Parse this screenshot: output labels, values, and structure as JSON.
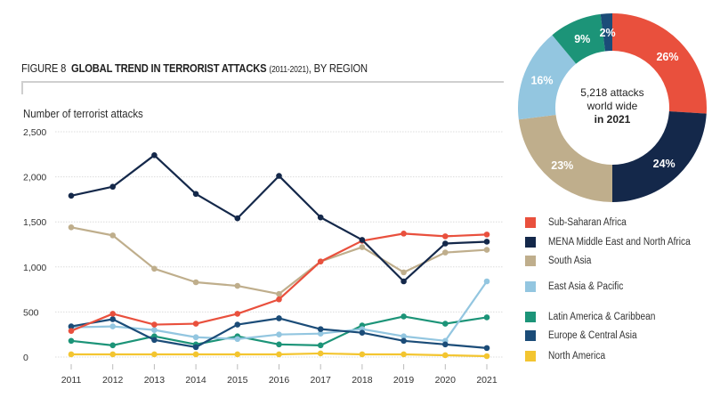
{
  "figure": {
    "prefix": "FIGURE 8",
    "title_bold": "GLOBAL TREND IN TERRORIST ATTACKS",
    "title_range": "(2011-2021)",
    "title_suffix": ", BY REGION"
  },
  "chart_data": [
    {
      "type": "line",
      "title": "GLOBAL TREND IN TERRORIST ATTACKS (2011-2021), BY REGION",
      "xlabel": "",
      "ylabel": "Number of terrorist attacks",
      "x": [
        "2011",
        "2012",
        "2013",
        "2014",
        "2015",
        "2016",
        "2017",
        "2018",
        "2019",
        "2020",
        "2021"
      ],
      "ylim": [
        0,
        2500
      ],
      "yticks": [
        0,
        500,
        1000,
        1500,
        2000,
        2500
      ],
      "ytick_labels": [
        "0",
        "500",
        "1,000",
        "1,500",
        "2,000",
        "2,500"
      ],
      "grid": true,
      "legend_position": "right",
      "series": [
        {
          "name": "Sub-Saharan Africa",
          "color": "#E9503D",
          "values": [
            290,
            480,
            360,
            370,
            480,
            640,
            1060,
            1290,
            1370,
            1340,
            1360
          ]
        },
        {
          "name": "MENA Middle East and North Africa",
          "color": "#14284A",
          "values": [
            1790,
            1890,
            2240,
            1810,
            1540,
            2010,
            1550,
            1300,
            840,
            1260,
            1280
          ]
        },
        {
          "name": "South Asia",
          "color": "#BFAE8C",
          "values": [
            1440,
            1350,
            980,
            830,
            790,
            700,
            1060,
            1220,
            940,
            1160,
            1190
          ]
        },
        {
          "name": "East Asia & Pacific",
          "color": "#93C6E0",
          "values": [
            330,
            340,
            300,
            220,
            200,
            250,
            260,
            310,
            230,
            180,
            840
          ]
        },
        {
          "name": "Latin America & Caribbean",
          "color": "#1C9478",
          "values": [
            180,
            130,
            230,
            140,
            230,
            140,
            130,
            350,
            450,
            370,
            440
          ]
        },
        {
          "name": "Europe & Central Asia",
          "color": "#1B4C78",
          "values": [
            340,
            420,
            190,
            110,
            360,
            430,
            310,
            270,
            180,
            140,
            100
          ]
        },
        {
          "name": "North America",
          "color": "#F3C530",
          "values": [
            30,
            30,
            30,
            30,
            30,
            30,
            40,
            30,
            30,
            20,
            10
          ]
        }
      ]
    },
    {
      "type": "pie",
      "title": "5,218 attacks world wide in 2021",
      "center_text": [
        "5,218 attacks",
        "world wide",
        "in 2021"
      ],
      "slices": [
        {
          "name": "Sub-Saharan Africa",
          "value": 26,
          "label": "26%",
          "color": "#E9503D"
        },
        {
          "name": "MENA Middle East and North Africa",
          "value": 24,
          "label": "24%",
          "color": "#14284A"
        },
        {
          "name": "South Asia",
          "value": 23,
          "label": "23%",
          "color": "#BFAE8C"
        },
        {
          "name": "East Asia & Pacific",
          "value": 16,
          "label": "16%",
          "color": "#93C6E0"
        },
        {
          "name": "Latin America & Caribbean",
          "value": 9,
          "label": "9%",
          "color": "#1C9478"
        },
        {
          "name": "Europe & Central Asia",
          "value": 2,
          "label": "2%",
          "color": "#1B4C78"
        }
      ]
    }
  ],
  "legend": [
    {
      "label": "Sub-Saharan Africa",
      "color": "#E9503D"
    },
    {
      "label": "MENA Middle East and North Africa",
      "color": "#14284A"
    },
    {
      "label": "South Asia",
      "color": "#BFAE8C"
    },
    {
      "label": "East Asia & Pacific",
      "color": "#93C6E0"
    },
    {
      "label": "Latin America & Caribbean",
      "color": "#1C9478"
    },
    {
      "label": "Europe & Central Asia",
      "color": "#1B4C78"
    },
    {
      "label": "North America",
      "color": "#F3C530"
    }
  ],
  "donut_center": {
    "line1": "5,218 attacks",
    "line2": "world wide",
    "line3": "in 2021"
  }
}
